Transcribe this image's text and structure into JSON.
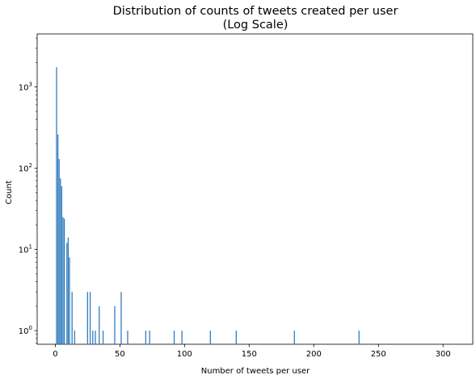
{
  "chart_data": {
    "type": "bar",
    "title_lines": [
      "Distribution of counts of tweets created per user",
      "(Log Scale)"
    ],
    "xlabel": "Number of tweets per user",
    "ylabel": "Count",
    "x_range": [
      -14,
      323
    ],
    "y_range": [
      0.68,
      4500
    ],
    "y_scale": "log",
    "grid": false,
    "x_ticks": [
      0,
      50,
      100,
      150,
      200,
      250,
      300
    ],
    "x_tick_labels": [
      "0",
      "50",
      "100",
      "150",
      "200",
      "250",
      "300"
    ],
    "y_ticks": [
      1,
      10,
      100,
      1000
    ],
    "y_tick_labels": [
      "10^0",
      "10^1",
      "10^2",
      "10^3"
    ],
    "bar_color": "#2f7bbd",
    "bars": [
      {
        "x": 1,
        "y": 1750
      },
      {
        "x": 2,
        "y": 260
      },
      {
        "x": 3,
        "y": 130
      },
      {
        "x": 4,
        "y": 75
      },
      {
        "x": 5,
        "y": 60
      },
      {
        "x": 6,
        "y": 25
      },
      {
        "x": 7,
        "y": 24
      },
      {
        "x": 9,
        "y": 12
      },
      {
        "x": 10,
        "y": 14
      },
      {
        "x": 11,
        "y": 8
      },
      {
        "x": 13,
        "y": 3
      },
      {
        "x": 15,
        "y": 1
      },
      {
        "x": 25,
        "y": 3
      },
      {
        "x": 27,
        "y": 3
      },
      {
        "x": 29,
        "y": 1
      },
      {
        "x": 31,
        "y": 1
      },
      {
        "x": 34,
        "y": 2
      },
      {
        "x": 37,
        "y": 1
      },
      {
        "x": 46,
        "y": 2
      },
      {
        "x": 51,
        "y": 3
      },
      {
        "x": 56,
        "y": 1
      },
      {
        "x": 70,
        "y": 1
      },
      {
        "x": 73,
        "y": 1
      },
      {
        "x": 92,
        "y": 1
      },
      {
        "x": 98,
        "y": 1
      },
      {
        "x": 120,
        "y": 1
      },
      {
        "x": 140,
        "y": 1
      },
      {
        "x": 185,
        "y": 1
      },
      {
        "x": 235,
        "y": 1
      }
    ]
  }
}
